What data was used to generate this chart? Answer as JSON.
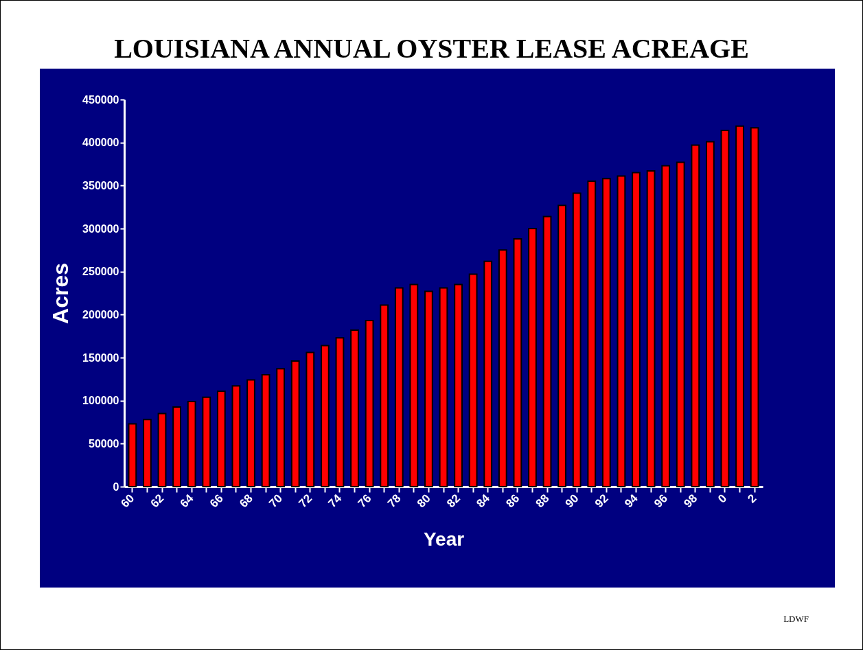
{
  "chart_data": {
    "type": "bar",
    "title": "LOUISIANA ANNUAL OYSTER LEASE ACREAGE",
    "xlabel": "Year",
    "ylabel": "Acres",
    "categories": [
      "60",
      null,
      "62",
      null,
      "64",
      null,
      "66",
      null,
      "68",
      null,
      "70",
      null,
      "72",
      null,
      "74",
      null,
      "76",
      null,
      "78",
      null,
      "80",
      null,
      "82",
      null,
      "84",
      null,
      "86",
      null,
      "88",
      null,
      "90",
      null,
      "92",
      null,
      "94",
      null,
      "96",
      null,
      "98",
      null,
      "0",
      null,
      "2"
    ],
    "values": [
      73000,
      78000,
      85000,
      92500,
      99000,
      104000,
      111000,
      117000,
      124000,
      130000,
      137000,
      146000,
      156000,
      164000,
      173000,
      182000,
      193000,
      211000,
      231000,
      235000,
      227000,
      231000,
      235000,
      247000,
      262000,
      275000,
      288000,
      300000,
      314000,
      327000,
      341000,
      355000,
      358000,
      361000,
      365000,
      367000,
      373000,
      377000,
      397000,
      401000,
      414000,
      419000,
      417000
    ],
    "color": "#ff0000",
    "ylim": [
      0,
      450000
    ],
    "yticks": [
      0,
      50000,
      100000,
      150000,
      200000,
      250000,
      300000,
      350000,
      400000,
      450000
    ],
    "grid": false,
    "annotations": [
      "LDWF"
    ]
  }
}
